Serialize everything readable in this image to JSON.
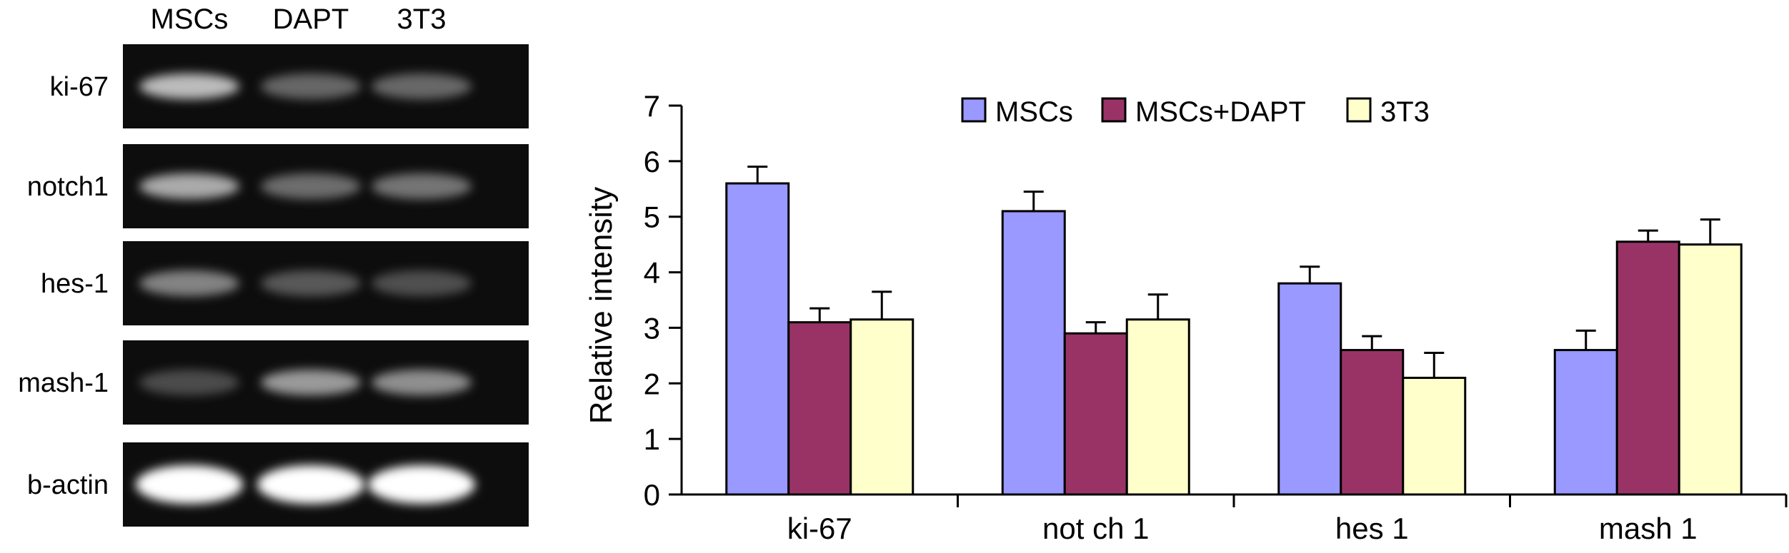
{
  "gel": {
    "lane_labels": [
      "MSCs",
      "DAPT",
      "3T3"
    ],
    "rows": [
      {
        "label": "ki-67",
        "bands": [
          0.7,
          0.32,
          0.33
        ]
      },
      {
        "label": "notch1",
        "bands": [
          0.62,
          0.35,
          0.38
        ]
      },
      {
        "label": "hes-1",
        "bands": [
          0.45,
          0.26,
          0.22
        ]
      },
      {
        "label": "mash-1",
        "bands": [
          0.2,
          0.55,
          0.5
        ]
      },
      {
        "label": "b-actin",
        "bands": [
          1.0,
          1.0,
          1.0
        ]
      }
    ]
  },
  "chart_data": {
    "type": "bar",
    "title": "",
    "xlabel": "",
    "ylabel": "Relative intensity",
    "ylim": [
      0,
      7
    ],
    "yticks": [
      0,
      1,
      2,
      3,
      4,
      5,
      6,
      7
    ],
    "categories": [
      "ki-67",
      "not ch 1",
      "hes 1",
      "mash 1"
    ],
    "series": [
      {
        "name": "MSCs",
        "color": "#9999ff",
        "values": [
          5.6,
          5.1,
          3.8,
          2.6
        ],
        "errors": [
          0.3,
          0.35,
          0.3,
          0.35
        ]
      },
      {
        "name": "MSCs+DAPT",
        "color": "#993366",
        "values": [
          3.1,
          2.9,
          2.6,
          4.55
        ],
        "errors": [
          0.25,
          0.2,
          0.25,
          0.2
        ]
      },
      {
        "name": "3T3",
        "color": "#ffffcc",
        "values": [
          3.15,
          3.15,
          2.1,
          4.5
        ],
        "errors": [
          0.5,
          0.45,
          0.45,
          0.45
        ]
      }
    ],
    "legend_position": "top",
    "grid": false
  }
}
